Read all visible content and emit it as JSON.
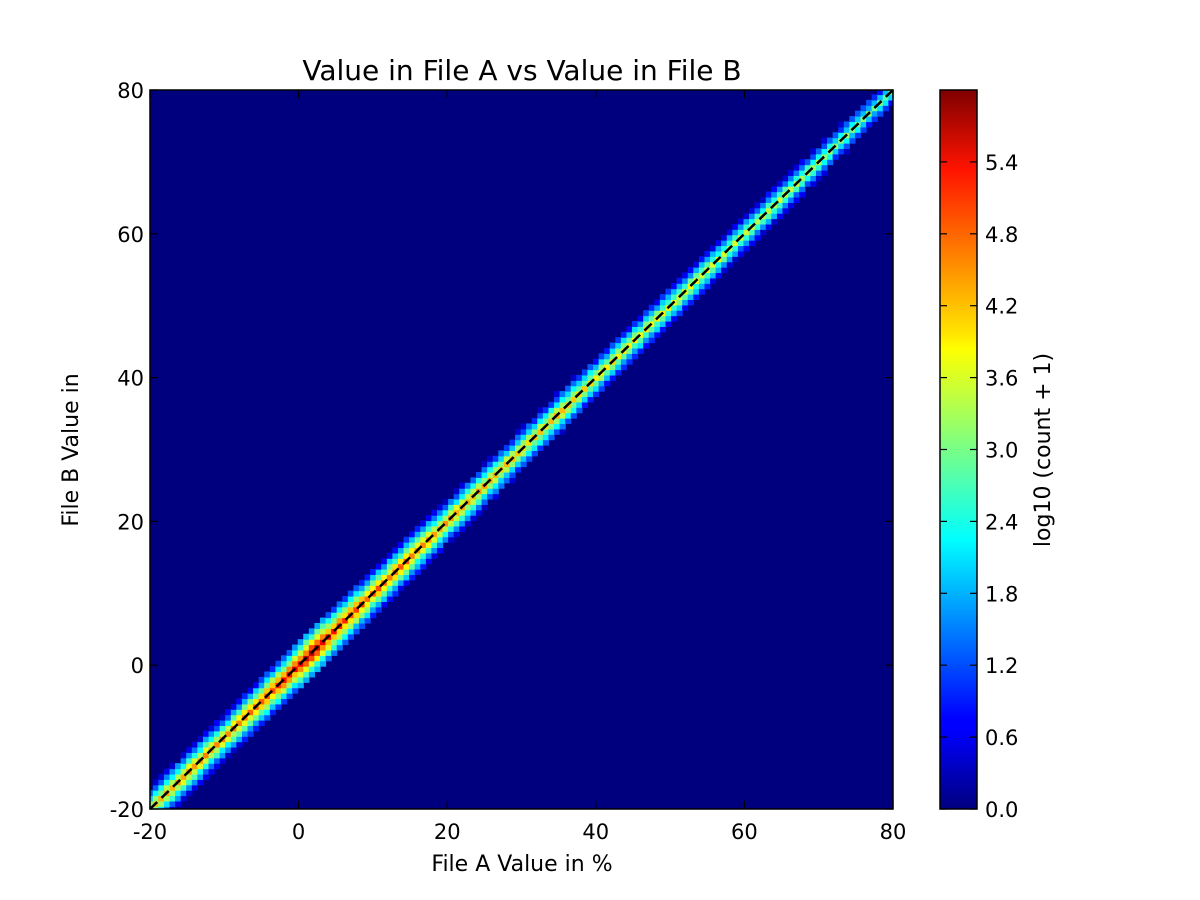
{
  "chart_data": {
    "type": "heatmap",
    "title": "Value in File A vs Value in File B",
    "xlabel": "File A Value in %",
    "ylabel": "File B Value in",
    "xlim": [
      -20,
      80
    ],
    "ylim": [
      -20,
      80
    ],
    "x_ticks": [
      "-20",
      "0",
      "20",
      "40",
      "60",
      "80"
    ],
    "y_ticks": [
      "-20",
      "0",
      "20",
      "40",
      "60",
      "80"
    ],
    "x_tick_values": [
      -20,
      0,
      20,
      40,
      60,
      80
    ],
    "y_tick_values": [
      -20,
      0,
      20,
      40,
      60,
      80
    ],
    "grid": false,
    "background_color": "#00007f",
    "reference_line": {
      "style": "dashed",
      "color": "#000000",
      "from": [
        -20,
        -20
      ],
      "to": [
        80,
        80
      ]
    },
    "colorbar": {
      "label": "log10 (count + 1)",
      "colormap": "jet",
      "range": [
        0,
        6
      ],
      "ticks": [
        "0.0",
        "0.6",
        "1.2",
        "1.8",
        "2.4",
        "3.0",
        "3.6",
        "4.2",
        "4.8",
        "5.4"
      ],
      "tick_values": [
        0,
        0.6,
        1.2,
        1.8,
        2.4,
        3.0,
        3.6,
        4.2,
        4.8,
        5.4
      ]
    },
    "diagonal_profile": {
      "description_points": [
        {
          "x": -20,
          "value": 4.0
        },
        {
          "x": -15,
          "value": 4.4
        },
        {
          "x": -10,
          "value": 4.3
        },
        {
          "x": -5,
          "value": 4.8
        },
        {
          "x": 0,
          "value": 5.3
        },
        {
          "x": 2,
          "value": 5.6
        },
        {
          "x": 5,
          "value": 5.1
        },
        {
          "x": 10,
          "value": 4.7
        },
        {
          "x": 15,
          "value": 4.6
        },
        {
          "x": 20,
          "value": 4.3
        },
        {
          "x": 25,
          "value": 4.2
        },
        {
          "x": 30,
          "value": 4.0
        },
        {
          "x": 35,
          "value": 4.1
        },
        {
          "x": 40,
          "value": 3.9
        },
        {
          "x": 45,
          "value": 3.8
        },
        {
          "x": 50,
          "value": 3.7
        },
        {
          "x": 55,
          "value": 3.6
        },
        {
          "x": 60,
          "value": 3.4
        },
        {
          "x": 65,
          "value": 3.5
        },
        {
          "x": 70,
          "value": 3.2
        },
        {
          "x": 75,
          "value": 3.0
        },
        {
          "x": 80,
          "value": 2.8
        }
      ]
    }
  }
}
